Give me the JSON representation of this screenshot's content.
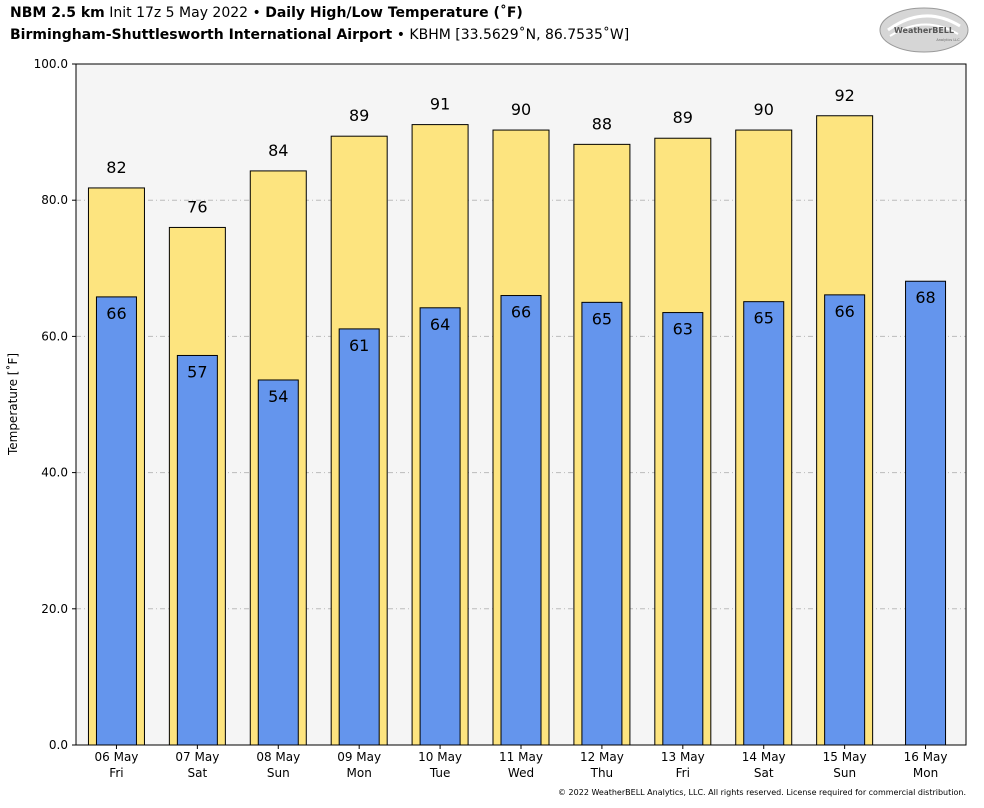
{
  "header": {
    "model": "NBM 2.5 km",
    "init": "Init 17z 5 May 2022",
    "bullet": "•",
    "product": "Daily High/Low Temperature (˚F)",
    "station_name": "Birmingham-Shuttlesworth International Airport",
    "station_info": "KBHM [33.5629˚N, 86.7535˚W]"
  },
  "logo": {
    "text": "WeatherBELL",
    "sub": "Analytics LLC"
  },
  "footer": {
    "copyright": "© 2022 WeatherBELL Analytics, LLC. All rights reserved. License required for commercial distribution."
  },
  "colors": {
    "high": "#fde47f",
    "low": "#6495ed",
    "plot_bg": "#f5f5f5",
    "grid": "#bbbbbb"
  },
  "chart_data": {
    "type": "bar",
    "title": "Daily High/Low Temperature (˚F)",
    "ylabel": "Temperature [˚F]",
    "xlabel": "",
    "ylim": [
      0,
      100
    ],
    "yticks": [
      "0.0",
      "20.0",
      "40.0",
      "60.0",
      "80.0",
      "100.0"
    ],
    "ytick_values": [
      0,
      20,
      40,
      60,
      80,
      100
    ],
    "grid": true,
    "categories": [
      {
        "date": "06 May",
        "day": "Fri"
      },
      {
        "date": "07 May",
        "day": "Sat"
      },
      {
        "date": "08 May",
        "day": "Sun"
      },
      {
        "date": "09 May",
        "day": "Mon"
      },
      {
        "date": "10 May",
        "day": "Tue"
      },
      {
        "date": "11 May",
        "day": "Wed"
      },
      {
        "date": "12 May",
        "day": "Thu"
      },
      {
        "date": "13 May",
        "day": "Fri"
      },
      {
        "date": "14 May",
        "day": "Sat"
      },
      {
        "date": "15 May",
        "day": "Sun"
      },
      {
        "date": "16 May",
        "day": "Mon"
      }
    ],
    "series": [
      {
        "values": [
          81.8,
          76.0,
          84.3,
          89.4,
          91.1,
          90.3,
          88.2,
          89.1,
          90.3,
          92.4,
          null
        ],
        "labels": [
          "82",
          "76",
          "84",
          "89",
          "91",
          "90",
          "88",
          "89",
          "90",
          "92",
          null
        ]
      },
      {
        "values": [
          65.8,
          57.2,
          53.6,
          61.1,
          64.2,
          66.0,
          65.0,
          63.5,
          65.1,
          66.1,
          68.1
        ],
        "labels": [
          "66",
          "57",
          "54",
          "61",
          "64",
          "66",
          "65",
          "63",
          "65",
          "66",
          "68"
        ]
      }
    ]
  }
}
